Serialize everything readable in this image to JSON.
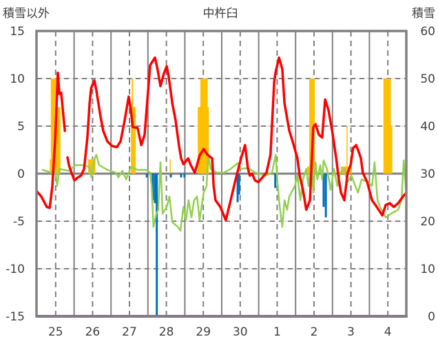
{
  "chart_data": {
    "type": "line",
    "title": "中杵臼",
    "ylabel_left": "積雪以外",
    "ylabel_right": "積雪",
    "left_axis": {
      "range": [
        -15,
        15
      ],
      "ticks": [
        "-15",
        "-10",
        "-5",
        "0",
        "5",
        "10",
        "15"
      ]
    },
    "right_axis": {
      "range": [
        0,
        60
      ],
      "ticks": [
        "0",
        "10",
        "20",
        "30",
        "40",
        "50",
        "60"
      ]
    },
    "x_range_days": [
      0,
      10
    ],
    "x_ticks": [
      "25",
      "26",
      "27",
      "28",
      "29",
      "30",
      "1",
      "2",
      "3",
      "4"
    ],
    "grid": true,
    "colors": {
      "red": "#ff0000",
      "green": "#92d050",
      "blue": "#0070c0",
      "orange": "#ffc000",
      "purple": "#7030a0",
      "frame": "#808080"
    },
    "series": [
      {
        "name": "red-line",
        "axis": "left",
        "color": "#ff0000",
        "points": [
          [
            0,
            -1.9
          ],
          [
            0.11,
            -2.4
          ],
          [
            0.26,
            -3.5
          ],
          [
            0.34,
            -3.6
          ],
          [
            0.41,
            -1.3
          ],
          [
            0.49,
            3.8
          ],
          [
            0.56,
            10.6
          ],
          [
            0.6,
            8.4
          ],
          [
            0.65,
            8.5
          ],
          [
            0.75,
            4.5
          ],
          null,
          [
            0.82,
            1.7
          ],
          [
            0.86,
            0.9
          ],
          [
            0.93,
            0.1
          ],
          [
            1.01,
            -0.7
          ],
          [
            1.1,
            -0.4
          ],
          [
            1.19,
            -0.2
          ],
          [
            1.27,
            0.5
          ],
          [
            1.36,
            3.8
          ],
          [
            1.42,
            7.4
          ],
          [
            1.46,
            9.0
          ],
          [
            1.55,
            9.8
          ],
          [
            1.6,
            8.8
          ],
          [
            1.72,
            5.9
          ],
          [
            1.79,
            4.5
          ],
          [
            1.9,
            3.4
          ],
          [
            2.03,
            2.9
          ],
          [
            2.16,
            2.8
          ],
          [
            2.26,
            3.4
          ],
          [
            2.37,
            5.6
          ],
          [
            2.48,
            8.1
          ],
          [
            2.54,
            6.7
          ],
          [
            2.59,
            4.9
          ],
          [
            2.72,
            4.8
          ],
          [
            2.82,
            3.0
          ],
          [
            2.91,
            4.1
          ],
          [
            3.06,
            11.4
          ],
          [
            3.19,
            12.2
          ],
          [
            3.26,
            11.0
          ],
          [
            3.34,
            9.2
          ],
          [
            3.43,
            10.5
          ],
          [
            3.51,
            11.3
          ],
          [
            3.56,
            10.3
          ],
          [
            3.66,
            7.4
          ],
          [
            3.75,
            5.6
          ],
          [
            3.84,
            3.0
          ],
          [
            3.9,
            1.6
          ],
          [
            3.96,
            1.0
          ],
          [
            4.09,
            1.6
          ],
          [
            4.16,
            0.9
          ],
          [
            4.27,
            0.1
          ],
          [
            4.4,
            1.9
          ],
          [
            4.51,
            2.6
          ],
          [
            4.61,
            2.0
          ],
          [
            4.74,
            1.6
          ],
          [
            4.78,
            -1.3
          ],
          [
            4.83,
            -2.8
          ],
          [
            4.96,
            -3.5
          ],
          [
            5.11,
            -4.9
          ],
          [
            5.24,
            -2.8
          ],
          [
            5.37,
            -0.7
          ],
          [
            5.52,
            1.6
          ],
          [
            5.63,
            3.0
          ],
          [
            5.71,
            0.5
          ],
          [
            5.76,
            -0.2
          ],
          [
            5.82,
            0
          ],
          [
            5.9,
            -0.7
          ],
          [
            5.99,
            -0.9
          ],
          [
            6.1,
            -0.4
          ],
          [
            6.21,
            0.1
          ],
          [
            6.32,
            2.0
          ],
          [
            6.42,
            9.6
          ],
          [
            6.46,
            10.7
          ],
          [
            6.55,
            12.2
          ],
          [
            6.64,
            11.0
          ],
          [
            6.7,
            7.4
          ],
          [
            6.83,
            4.5
          ],
          [
            6.92,
            3.4
          ],
          [
            7.05,
            1.6
          ],
          [
            7.11,
            -0.2
          ],
          [
            7.2,
            -1.7
          ],
          [
            7.29,
            -3.8
          ],
          [
            7.39,
            -2.8
          ],
          [
            7.48,
            4.9
          ],
          [
            7.54,
            5.2
          ],
          [
            7.63,
            4.1
          ],
          [
            7.72,
            3.8
          ],
          [
            7.8,
            7.8
          ],
          [
            7.89,
            6.7
          ],
          [
            7.99,
            4.5
          ],
          [
            8.1,
            1.6
          ],
          [
            8.17,
            -0.6
          ],
          [
            8.23,
            -2.0
          ],
          [
            8.32,
            -2.8
          ],
          [
            8.41,
            0.1
          ],
          [
            8.49,
            0.9
          ],
          [
            8.56,
            2.7
          ],
          [
            8.64,
            3.0
          ],
          [
            8.71,
            2.3
          ],
          [
            8.77,
            1.6
          ],
          [
            8.82,
            0.1
          ],
          [
            8.94,
            -0.9
          ],
          [
            9.07,
            -2.8
          ],
          [
            9.2,
            -3.5
          ],
          [
            9.35,
            -4.4
          ],
          [
            9.44,
            -3.3
          ],
          [
            9.55,
            -3.1
          ],
          [
            9.66,
            -3.5
          ],
          [
            9.78,
            -3.1
          ],
          [
            9.91,
            -2.4
          ],
          [
            10.0,
            -2.0
          ]
        ]
      },
      {
        "name": "green-line",
        "axis": "left",
        "color": "#92d050",
        "points": [
          [
            0.15,
            0.4
          ],
          [
            0.39,
            0.1
          ],
          [
            0.49,
            0.5
          ],
          [
            0.54,
            -1.3
          ],
          [
            0.6,
            0.5
          ],
          [
            0.86,
            0.3
          ],
          [
            1.04,
            0.9
          ],
          [
            1.23,
            0.9
          ],
          [
            1.42,
            0.7
          ],
          [
            1.47,
            -0.4
          ],
          [
            1.53,
            1.2
          ],
          [
            1.6,
            2.0
          ],
          [
            1.68,
            0.9
          ],
          [
            1.9,
            0.4
          ],
          [
            2.13,
            0.1
          ],
          [
            2.2,
            -0.4
          ],
          [
            2.31,
            0.3
          ],
          [
            2.41,
            -0.6
          ],
          [
            2.54,
            0.7
          ],
          [
            2.72,
            0.4
          ],
          [
            2.95,
            0.4
          ],
          [
            3.06,
            0.1
          ],
          [
            3.1,
            -1.3
          ],
          [
            3.15,
            -5.6
          ],
          [
            3.23,
            -4.2
          ],
          [
            3.28,
            -3.8
          ],
          [
            3.34,
            1.2
          ],
          [
            3.4,
            -4.2
          ],
          [
            3.51,
            -3.5
          ],
          [
            3.58,
            -2.4
          ],
          [
            3.66,
            -5.1
          ],
          [
            3.81,
            -5.6
          ],
          [
            3.88,
            -6.0
          ],
          [
            3.96,
            -3.5
          ],
          [
            4.03,
            -4.9
          ],
          [
            4.1,
            -2.8
          ],
          [
            4.18,
            -4.6
          ],
          [
            4.25,
            -2.8
          ],
          [
            4.33,
            -2.4
          ],
          [
            4.4,
            -4.9
          ],
          [
            4.51,
            -2.0
          ],
          [
            4.59,
            -1.3
          ],
          [
            4.63,
            2.0
          ],
          [
            4.7,
            0.5
          ],
          [
            4.87,
            0.1
          ],
          [
            5.06,
            0.1
          ],
          [
            5.24,
            0.5
          ],
          [
            5.43,
            1.1
          ],
          [
            5.52,
            0.5
          ],
          [
            5.71,
            0.6
          ],
          [
            5.91,
            0.1
          ],
          [
            6.18,
            -0.2
          ],
          [
            6.36,
            0.1
          ],
          [
            6.46,
            2.0
          ],
          [
            6.51,
            -0.9
          ],
          [
            6.57,
            -3.5
          ],
          [
            6.64,
            -5.6
          ],
          [
            6.7,
            -2.8
          ],
          [
            6.77,
            -3.8
          ],
          [
            6.83,
            -2.4
          ],
          [
            6.98,
            -1.3
          ],
          [
            7.05,
            -0.2
          ],
          [
            7.13,
            -2.8
          ],
          [
            7.2,
            -0.6
          ],
          [
            7.29,
            0.5
          ],
          [
            7.35,
            -1.3
          ],
          [
            7.43,
            1.6
          ],
          [
            7.48,
            -2.0
          ],
          [
            7.54,
            1.2
          ],
          [
            7.59,
            -0.6
          ],
          [
            7.67,
            0.9
          ],
          [
            7.72,
            -0.6
          ],
          [
            7.76,
            1.4
          ],
          [
            7.85,
            0.5
          ],
          [
            7.95,
            -1.7
          ],
          [
            8.04,
            0.5
          ],
          [
            8.13,
            -1.3
          ],
          [
            8.21,
            0.1
          ],
          [
            8.32,
            0.5
          ],
          [
            8.41,
            -0.9
          ],
          [
            8.51,
            -0.2
          ],
          [
            8.69,
            -2.0
          ],
          [
            8.79,
            -0.6
          ],
          [
            8.97,
            -0.9
          ],
          [
            9.07,
            -1.3
          ],
          [
            9.14,
            1.2
          ],
          [
            9.22,
            -2.8
          ],
          [
            9.29,
            -3.5
          ],
          [
            9.44,
            -4.6
          ],
          [
            9.59,
            -4.2
          ],
          [
            9.78,
            -3.8
          ],
          [
            9.87,
            -2.8
          ],
          [
            9.93,
            1.4
          ],
          [
            10.0,
            -2.2
          ]
        ]
      },
      {
        "name": "blue-bars",
        "axis": "left",
        "color": "#0070c0",
        "bars": [
          [
            2.97,
            -0.4
          ],
          [
            3.13,
            -2.8
          ],
          [
            3.19,
            -3.1
          ],
          [
            3.24,
            -15
          ],
          [
            3.62,
            -0.4
          ],
          [
            3.9,
            -0.4
          ],
          [
            3.99,
            -0.4
          ],
          [
            5.43,
            -3.0
          ],
          [
            5.47,
            -2.2
          ],
          [
            6.45,
            -1.5
          ],
          [
            7.76,
            -3.5
          ],
          [
            7.82,
            -4.6
          ]
        ]
      },
      {
        "name": "orange-bars",
        "axis": "right",
        "color": "#ffc000",
        "bars": [
          [
            0.34,
            0.04,
            33
          ],
          [
            0.37,
            0.15,
            50
          ],
          [
            0.52,
            0.11,
            44
          ],
          [
            1.38,
            0.2,
            33
          ],
          [
            2.54,
            0.13,
            44
          ],
          [
            2.56,
            0.04,
            50
          ],
          [
            3.59,
            0.03,
            33
          ],
          [
            4.35,
            0.3,
            44
          ],
          [
            4.42,
            0.2,
            50
          ],
          [
            7.31,
            0.26,
            31.5
          ],
          [
            7.37,
            0.15,
            50
          ],
          [
            8.23,
            0.28,
            31.5
          ],
          [
            8.38,
            0.02,
            40
          ],
          [
            9.38,
            0.2,
            50
          ],
          [
            9.55,
            0.07,
            40
          ]
        ]
      },
      {
        "name": "purple-line",
        "axis": "right",
        "color": "#7030a0",
        "points": [
          [
            0,
            0
          ],
          [
            10,
            0
          ]
        ]
      }
    ]
  }
}
